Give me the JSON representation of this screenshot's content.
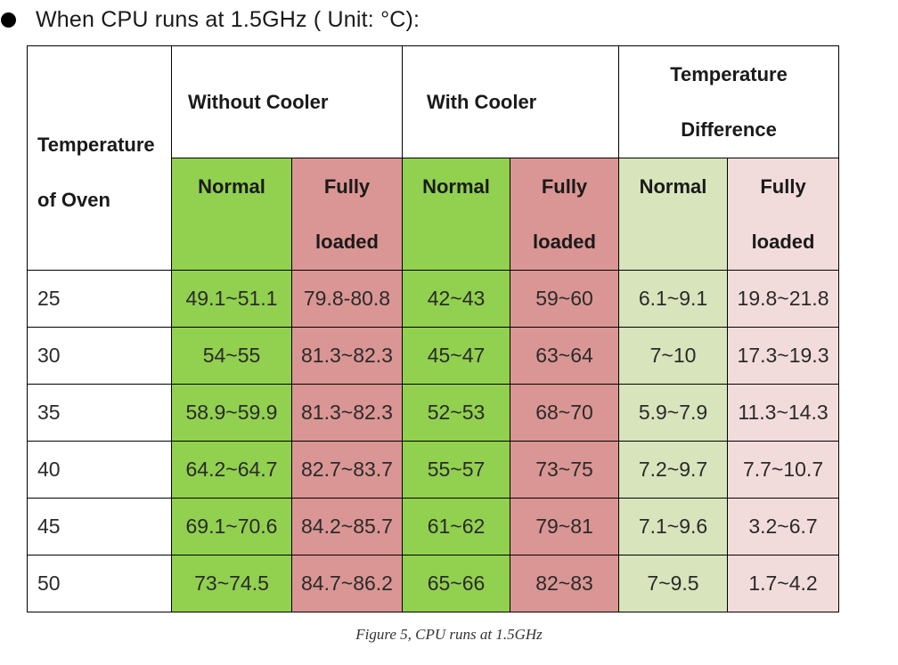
{
  "intro": {
    "text": "When CPU runs at 1.5GHz ( Unit:  °C):"
  },
  "table": {
    "corner_label": [
      "Temperature",
      "of Oven"
    ],
    "groups": [
      {
        "label": "Without Cooler"
      },
      {
        "label": "With Cooler"
      },
      {
        "label_lines": [
          "Temperature",
          "Difference"
        ]
      }
    ],
    "sub_headers": {
      "normal": "Normal",
      "fully_line1": "Fully",
      "fully_line2": "loaded"
    },
    "rows": [
      {
        "oven": "25",
        "values": [
          "49.1~51.1",
          "79.8-80.8",
          "42~43",
          "59~60",
          "6.1~9.1",
          "19.8~21.8"
        ]
      },
      {
        "oven": "30",
        "values": [
          "54~55",
          "81.3~82.3",
          "45~47",
          "63~64",
          "7~10",
          "17.3~19.3"
        ]
      },
      {
        "oven": "35",
        "values": [
          "58.9~59.9",
          "81.3~82.3",
          "52~53",
          "68~70",
          "5.9~7.9",
          "11.3~14.3"
        ]
      },
      {
        "oven": "40",
        "values": [
          "64.2~64.7",
          "82.7~83.7",
          "55~57",
          "73~75",
          "7.2~9.7",
          "7.7~10.7"
        ]
      },
      {
        "oven": "45",
        "values": [
          "69.1~70.6",
          "84.2~85.7",
          "61~62",
          "79~81",
          "7.1~9.6",
          "3.2~6.7"
        ]
      },
      {
        "oven": "50",
        "values": [
          "73~74.5",
          "84.7~86.2",
          "65~66",
          "82~83",
          "7~9.5",
          "1.7~4.2"
        ]
      }
    ],
    "colors": {
      "normal_strong": "#92d050",
      "fully_strong": "#da9694",
      "normal_light": "#d8e4bc",
      "fully_light": "#f2dcdb"
    }
  },
  "caption": "Figure 5, CPU runs at 1.5GHz"
}
